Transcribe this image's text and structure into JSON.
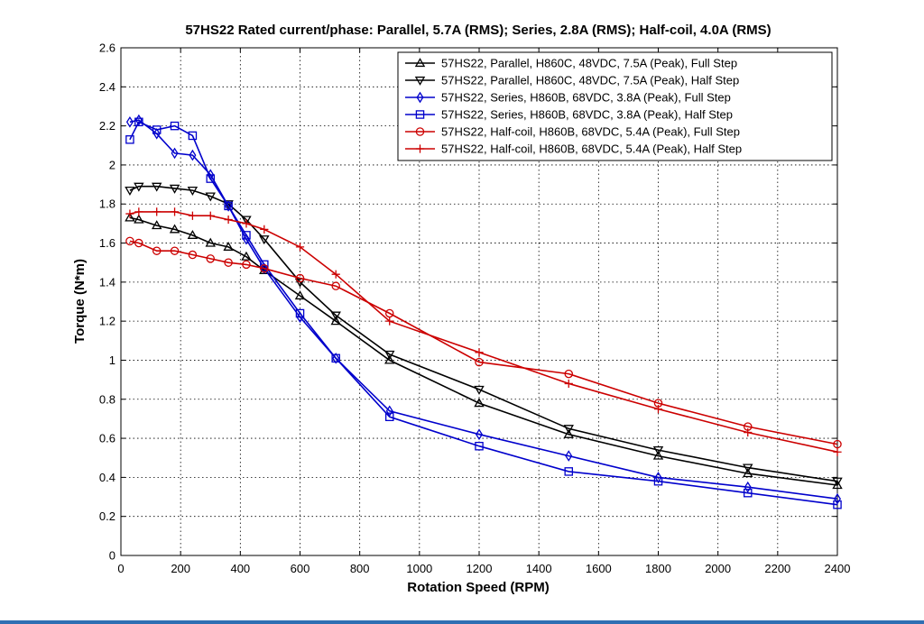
{
  "chart_data": {
    "type": "line",
    "title": "57HS22 Rated current/phase: Parallel, 5.7A (RMS); Series, 2.8A (RMS); Half-coil, 4.0A (RMS)",
    "xlabel": "Rotation Speed (RPM)",
    "ylabel": "Torque (N*m)",
    "xlim": [
      0,
      2400
    ],
    "ylim": [
      0,
      2.6
    ],
    "xticks": [
      0,
      200,
      400,
      600,
      800,
      1000,
      1200,
      1400,
      1600,
      1800,
      2000,
      2200,
      2400
    ],
    "yticks": [
      0,
      0.2,
      0.4,
      0.6,
      0.8,
      1,
      1.2,
      1.4,
      1.6,
      1.8,
      2,
      2.2,
      2.4,
      2.6
    ],
    "xtick_labels": [
      "0",
      "200",
      "400",
      "600",
      "800",
      "1000",
      "1200",
      "1400",
      "1600",
      "1800",
      "2000",
      "2200",
      "2400"
    ],
    "ytick_labels": [
      "0",
      "0.2",
      "0.4",
      "0.6",
      "0.8",
      "1",
      "1.2",
      "1.4",
      "1.6",
      "1.8",
      "2",
      "2.2",
      "2.4",
      "2.6"
    ],
    "grid": true,
    "legend_position": "top-right",
    "series": [
      {
        "name": "57HS22, Parallel, H860C, 48VDC, 7.5A (Peak), Full Step",
        "color": "#000000",
        "marker": "triangle-up",
        "x": [
          30,
          60,
          120,
          180,
          240,
          300,
          360,
          420,
          480,
          600,
          720,
          900,
          1200,
          1500,
          1800,
          2100,
          2400
        ],
        "y": [
          1.73,
          1.72,
          1.69,
          1.67,
          1.64,
          1.6,
          1.58,
          1.53,
          1.46,
          1.33,
          1.2,
          1.0,
          0.78,
          0.62,
          0.51,
          0.42,
          0.36
        ]
      },
      {
        "name": "57HS22, Parallel, H860C, 48VDC, 7.5A (Peak), Half Step",
        "color": "#000000",
        "marker": "triangle-down",
        "x": [
          30,
          60,
          120,
          180,
          240,
          300,
          360,
          420,
          480,
          600,
          720,
          900,
          1200,
          1500,
          1800,
          2100,
          2400
        ],
        "y": [
          1.87,
          1.89,
          1.89,
          1.88,
          1.87,
          1.84,
          1.8,
          1.72,
          1.62,
          1.4,
          1.23,
          1.03,
          0.85,
          0.65,
          0.54,
          0.45,
          0.38
        ]
      },
      {
        "name": "57HS22, Series, H860B, 68VDC, 3.8A (Peak), Full Step",
        "color": "#0000cc",
        "marker": "diamond",
        "x": [
          30,
          60,
          120,
          180,
          240,
          300,
          360,
          420,
          480,
          600,
          720,
          900,
          1200,
          1500,
          1800,
          2100,
          2400
        ],
        "y": [
          2.22,
          2.23,
          2.16,
          2.06,
          2.05,
          1.95,
          1.79,
          1.62,
          1.47,
          1.22,
          1.01,
          0.74,
          0.62,
          0.51,
          0.4,
          0.35,
          0.29
        ]
      },
      {
        "name": "57HS22, Series, H860B, 68VDC, 3.8A (Peak), Half Step",
        "color": "#0000cc",
        "marker": "square",
        "x": [
          30,
          60,
          120,
          180,
          240,
          300,
          360,
          420,
          480,
          600,
          720,
          900,
          1200,
          1500,
          1800,
          2100,
          2400
        ],
        "y": [
          2.13,
          2.22,
          2.18,
          2.2,
          2.15,
          1.93,
          1.79,
          1.64,
          1.49,
          1.24,
          1.01,
          0.71,
          0.56,
          0.43,
          0.38,
          0.32,
          0.26
        ]
      },
      {
        "name": "57HS22, Half-coil, H860B, 68VDC, 5.4A (Peak), Full Step",
        "color": "#cc0000",
        "marker": "circle",
        "x": [
          30,
          60,
          120,
          180,
          240,
          300,
          360,
          420,
          480,
          600,
          720,
          900,
          1200,
          1500,
          1800,
          2100,
          2400
        ],
        "y": [
          1.61,
          1.6,
          1.56,
          1.56,
          1.54,
          1.52,
          1.5,
          1.49,
          1.47,
          1.42,
          1.38,
          1.24,
          0.99,
          0.93,
          0.78,
          0.66,
          0.57
        ]
      },
      {
        "name": "57HS22, Half-coil, H860B, 68VDC, 5.4A (Peak), Half Step",
        "color": "#cc0000",
        "marker": "plus",
        "x": [
          30,
          60,
          120,
          180,
          240,
          300,
          360,
          420,
          480,
          600,
          720,
          900,
          1200,
          1500,
          1800,
          2100,
          2400
        ],
        "y": [
          1.75,
          1.76,
          1.76,
          1.76,
          1.74,
          1.74,
          1.72,
          1.7,
          1.67,
          1.58,
          1.44,
          1.2,
          1.04,
          0.88,
          0.75,
          0.63,
          0.53
        ]
      }
    ]
  }
}
